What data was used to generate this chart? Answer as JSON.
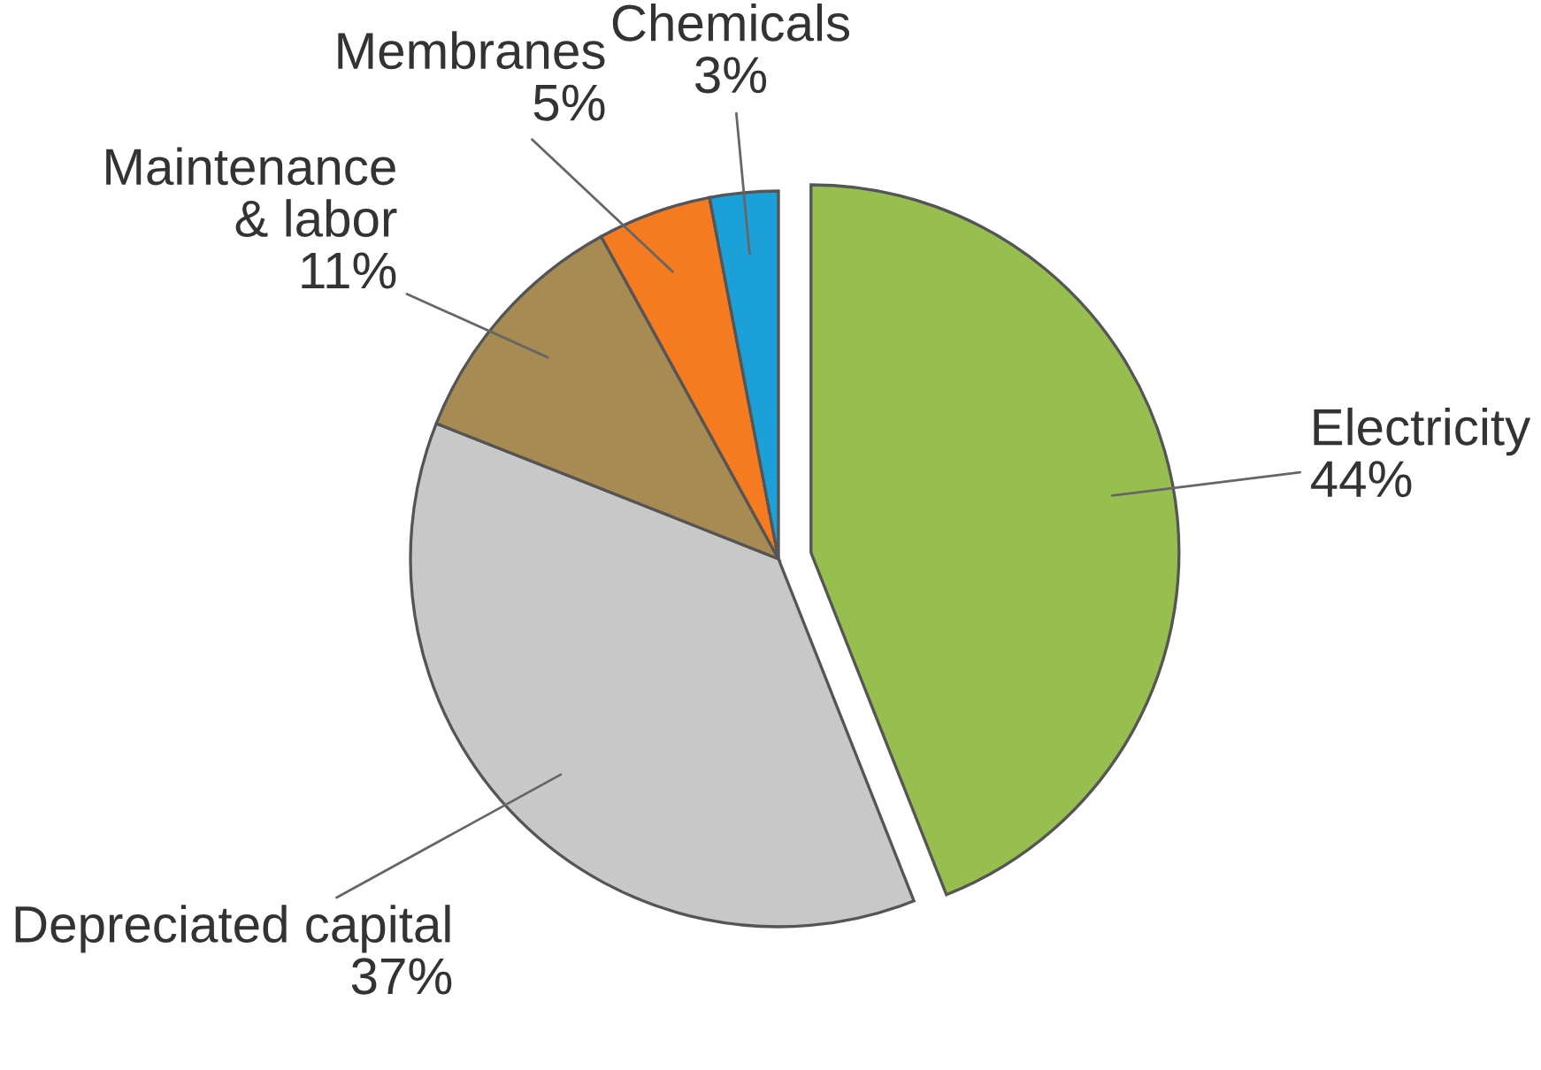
{
  "chart_data": {
    "type": "pie",
    "categories": [
      "Electricity",
      "Depreciated capital",
      "Maintenance\n& labor",
      "Membranes",
      "Chemicals"
    ],
    "values": [
      44,
      37,
      11,
      5,
      3
    ],
    "value_labels": [
      "44%",
      "37%",
      "11%",
      "5%",
      "3%"
    ],
    "colors": [
      "#97bf4f",
      "#c8c8c8",
      "#a88b52",
      "#f47b20",
      "#1ba1d8"
    ]
  }
}
